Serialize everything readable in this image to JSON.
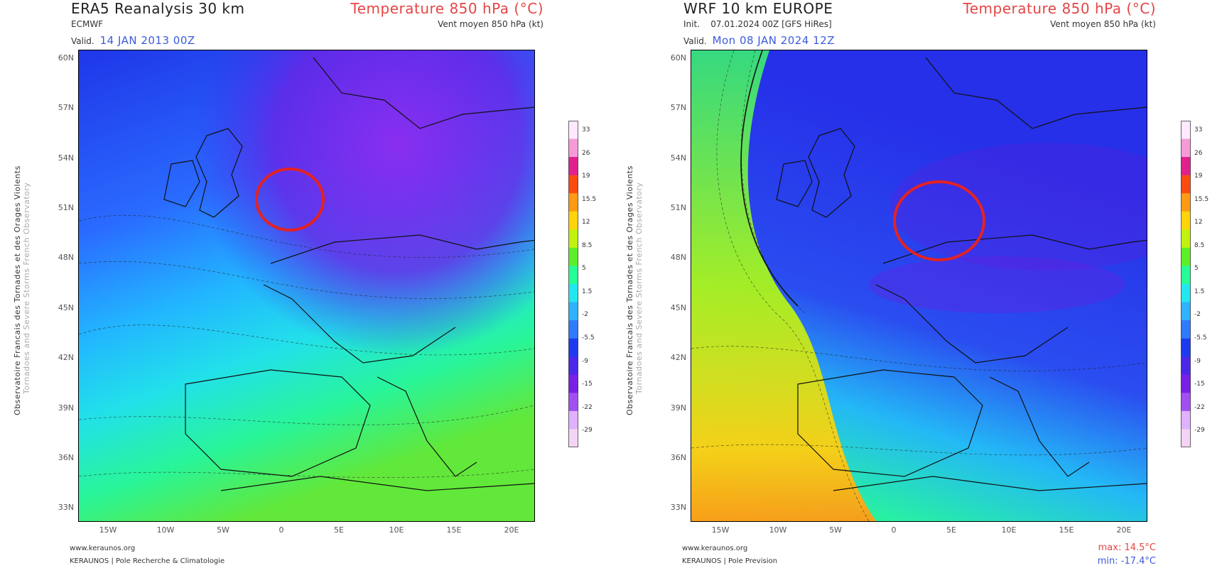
{
  "legend_colors": [
    "#f4d4f4",
    "#dfb1ff",
    "#a14ff2",
    "#7a1fe6",
    "#4c27eb",
    "#1c3bf0",
    "#2f7bff",
    "#2fb2ff",
    "#22e7ee",
    "#24ff95",
    "#5cef28",
    "#c2f20f",
    "#ffd40a",
    "#ff9a14",
    "#ff4a0f",
    "#e0208f",
    "#f59ad8",
    "#ffe9ff"
  ],
  "legend_ticks": [
    "33",
    "26",
    "19",
    "15.5",
    "12",
    "8.5",
    "5",
    "1.5",
    "-2",
    "-5.5",
    "-9",
    "-15",
    "-22",
    "-29"
  ],
  "lat_labels": [
    "60N",
    "57N",
    "54N",
    "51N",
    "48N",
    "45N",
    "42N",
    "39N",
    "36N",
    "33N"
  ],
  "lon_labels": [
    "15W",
    "10W",
    "5W",
    "0",
    "5E",
    "10E",
    "15E",
    "20E"
  ],
  "left": {
    "title": "ERA5 Reanalysis 30 km",
    "subtitle": "ECMWF",
    "valid_label": "Valid.",
    "valid_date": "14 JAN 2013 00Z",
    "parameter": "Temperature 850 hPa (°C)",
    "wind": "Vent moyen 850 hPa (kt)",
    "side_text_1": "Observatoire Francais des Tornades et des Orages Violents",
    "side_text_2": "Tornadoes and Severe Storms French Observatory",
    "footer_url": "www.keraunos.org",
    "footer_org": "KERAUNOS | Pole Recherche & Climatologie"
  },
  "right": {
    "title": "WRF 10 km EUROPE",
    "init_line": "Init.    07.01.2024 00Z [GFS HiRes]",
    "valid_label": "Valid.",
    "valid_date": "Mon 08 JAN 2024 12Z",
    "parameter": "Temperature 850 hPa (°C)",
    "wind": "Vent moyen 850 hPa (kt)",
    "side_text_1": "Observatoire Francais des Tornades et des Orages Violents",
    "side_text_2": "Tornadoes and Severe Storms French Observatory",
    "footer_url": "www.keraunos.org",
    "footer_org": "KERAUNOS | Pole Prevision",
    "max_label": "max: 14.5°C",
    "min_label": "min: -17.4°C"
  }
}
